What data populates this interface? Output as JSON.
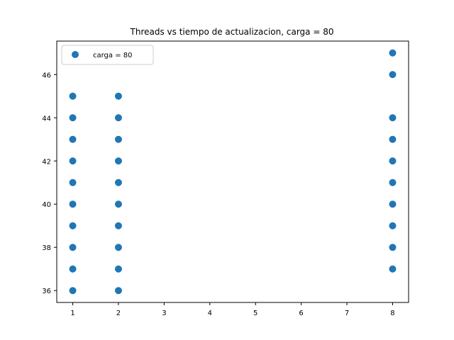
{
  "chart_data": {
    "type": "scatter",
    "title": "Threads vs tiempo de actualizacion, carga = 80",
    "xlabel": "",
    "ylabel": "",
    "xlim": [
      0.65,
      8.35
    ],
    "ylim": [
      35.45,
      47.55
    ],
    "xticks": [
      1,
      2,
      3,
      4,
      5,
      6,
      7,
      8
    ],
    "yticks": [
      36,
      38,
      40,
      42,
      44,
      46
    ],
    "grid": false,
    "legend_position": "top-left",
    "series": [
      {
        "name": "carga = 80",
        "color": "#1f77b4",
        "points": [
          [
            1,
            36
          ],
          [
            1,
            37
          ],
          [
            1,
            38
          ],
          [
            1,
            39
          ],
          [
            1,
            40
          ],
          [
            1,
            41
          ],
          [
            1,
            42
          ],
          [
            1,
            43
          ],
          [
            1,
            44
          ],
          [
            1,
            45
          ],
          [
            2,
            36
          ],
          [
            2,
            37
          ],
          [
            2,
            38
          ],
          [
            2,
            39
          ],
          [
            2,
            40
          ],
          [
            2,
            41
          ],
          [
            2,
            42
          ],
          [
            2,
            43
          ],
          [
            2,
            44
          ],
          [
            2,
            45
          ],
          [
            8,
            37
          ],
          [
            8,
            38
          ],
          [
            8,
            39
          ],
          [
            8,
            40
          ],
          [
            8,
            41
          ],
          [
            8,
            42
          ],
          [
            8,
            43
          ],
          [
            8,
            44
          ],
          [
            8,
            46
          ],
          [
            8,
            47
          ]
        ]
      }
    ]
  }
}
